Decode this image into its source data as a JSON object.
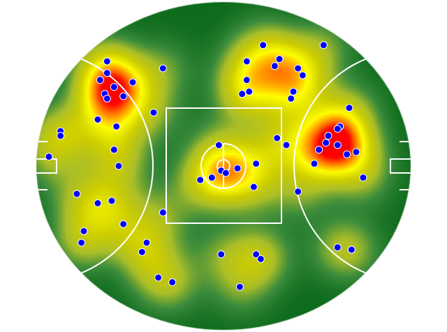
{
  "chart_data": {
    "type": "heatmap",
    "title": "",
    "xlabel": "",
    "ylabel": "",
    "xlim": [
      -80,
      80
    ],
    "ylim": [
      -70,
      70
    ],
    "grid": false,
    "legend": "none",
    "colors": {
      "low": "#0d6b1c",
      "mid": "#c8c400",
      "high": "#ff0000",
      "marker_fill": "#0000ff",
      "marker_edge": "#ffffff",
      "field_lines": "#ffffff"
    },
    "points": [
      [
        -50,
        45
      ],
      [
        -50,
        40
      ],
      [
        -53,
        37
      ],
      [
        -47,
        34
      ],
      [
        -51,
        31
      ],
      [
        -50,
        29
      ],
      [
        -43,
        30
      ],
      [
        -39,
        36
      ],
      [
        -26,
        42
      ],
      [
        -54,
        20
      ],
      [
        -46,
        17
      ],
      [
        -30,
        23
      ],
      [
        -70,
        15
      ],
      [
        -70,
        13
      ],
      [
        -75,
        4
      ],
      [
        -47,
        7
      ],
      [
        -45,
        0
      ],
      [
        -63,
        -12
      ],
      [
        -54,
        -16
      ],
      [
        -48,
        -15
      ],
      [
        -43,
        -25
      ],
      [
        -60,
        -28
      ],
      [
        -61,
        -33
      ],
      [
        -26,
        -20
      ],
      [
        -33,
        -33
      ],
      [
        -35,
        -37
      ],
      [
        -28,
        -48
      ],
      [
        -22,
        -50
      ],
      [
        -1,
        -38
      ],
      [
        7,
        -52
      ],
      [
        14,
        -38
      ],
      [
        16,
        -40
      ],
      [
        17,
        52
      ],
      [
        10,
        45
      ],
      [
        24,
        46
      ],
      [
        22,
        43
      ],
      [
        32,
        42
      ],
      [
        34,
        39
      ],
      [
        10,
        37
      ],
      [
        8,
        31
      ],
      [
        11,
        32
      ],
      [
        30,
        32
      ],
      [
        29,
        29
      ],
      [
        43,
        52
      ],
      [
        54,
        25
      ],
      [
        50,
        17
      ],
      [
        49,
        16
      ],
      [
        45,
        13
      ],
      [
        44,
        10
      ],
      [
        41,
        7
      ],
      [
        49,
        9
      ],
      [
        53,
        5
      ],
      [
        57,
        6
      ],
      [
        39,
        1
      ],
      [
        60,
        -5
      ],
      [
        32,
        -11
      ],
      [
        23,
        12
      ],
      [
        27,
        9
      ],
      [
        14,
        1
      ],
      [
        13,
        -9
      ],
      [
        -2,
        9
      ],
      [
        6,
        -1
      ],
      [
        -1,
        -2
      ],
      [
        1,
        -3
      ],
      [
        -5,
        -5
      ],
      [
        -10,
        -6
      ],
      [
        49,
        -35
      ],
      [
        55,
        -36
      ]
    ]
  }
}
